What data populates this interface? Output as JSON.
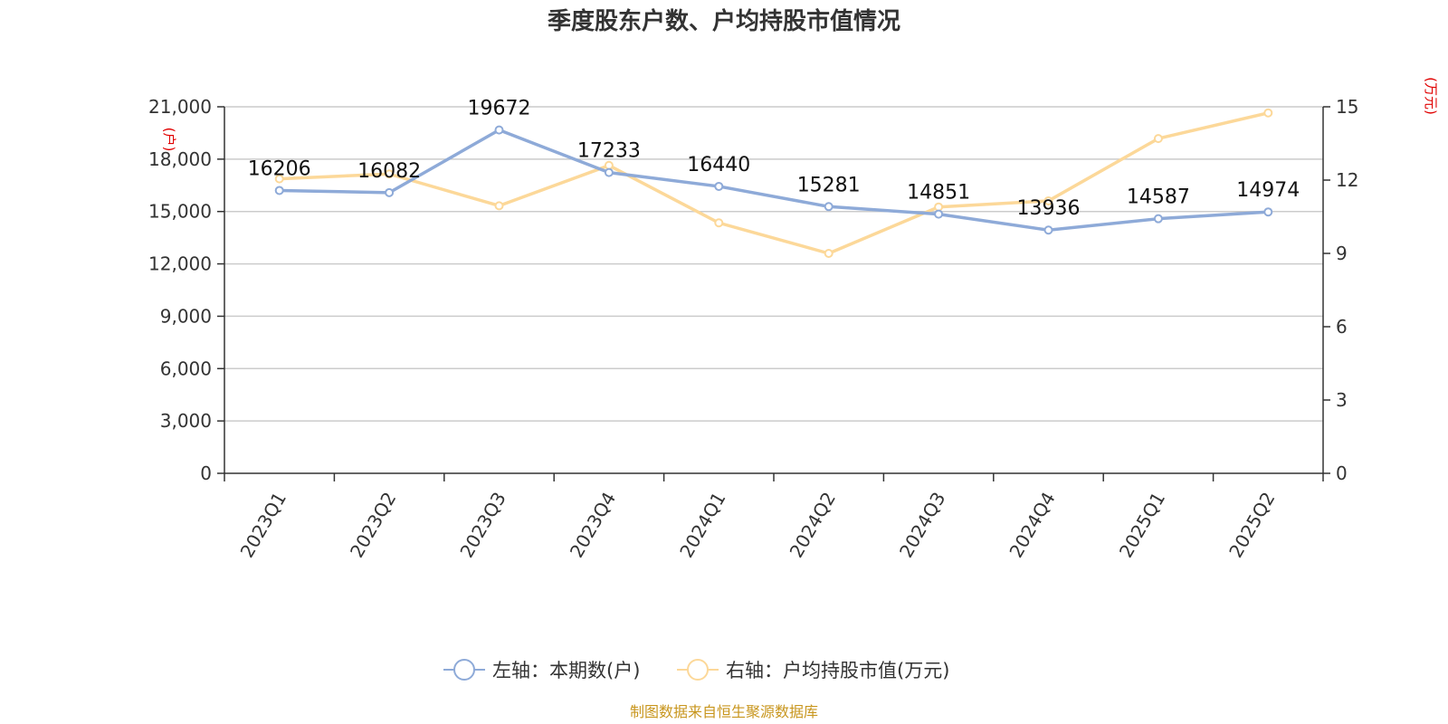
{
  "chart_data": {
    "type": "line",
    "title": "季度股东户数、户均持股市值情况",
    "categories": [
      "2023Q1",
      "2023Q2",
      "2023Q3",
      "2023Q4",
      "2024Q1",
      "2024Q2",
      "2024Q3",
      "2024Q4",
      "2025Q1",
      "2025Q2"
    ],
    "left_axis": {
      "unit": "(户)",
      "ylim": [
        0,
        21000
      ],
      "ticks": [
        0,
        3000,
        6000,
        9000,
        12000,
        15000,
        18000,
        21000
      ],
      "tick_labels": [
        "0",
        "3,000",
        "6,000",
        "9,000",
        "12,000",
        "15,000",
        "18,000",
        "21,000"
      ]
    },
    "right_axis": {
      "unit": "(万元)",
      "ylim": [
        0,
        15
      ],
      "ticks": [
        0,
        3,
        6,
        9,
        12,
        15
      ],
      "tick_labels": [
        "0",
        "3",
        "6",
        "9",
        "12",
        "15"
      ]
    },
    "series": [
      {
        "name": "左轴：本期数(户)",
        "axis": "left",
        "color": "#8eaad8",
        "values": [
          16206,
          16082,
          19672,
          17233,
          16440,
          15281,
          14851,
          13936,
          14587,
          14974
        ],
        "data_labels": [
          "16206",
          "16082",
          "19672",
          "17233",
          "16440",
          "15281",
          "14851",
          "13936",
          "14587",
          "14974"
        ]
      },
      {
        "name": "右轴：户均持股市值(万元)",
        "axis": "right",
        "color": "#fcd899",
        "values": [
          12.05,
          12.25,
          10.95,
          12.6,
          10.25,
          9.0,
          10.9,
          11.15,
          13.7,
          14.75
        ]
      }
    ],
    "grid": true,
    "legend_position": "bottom-center"
  },
  "source_note": "制图数据来自恒生聚源数据库"
}
